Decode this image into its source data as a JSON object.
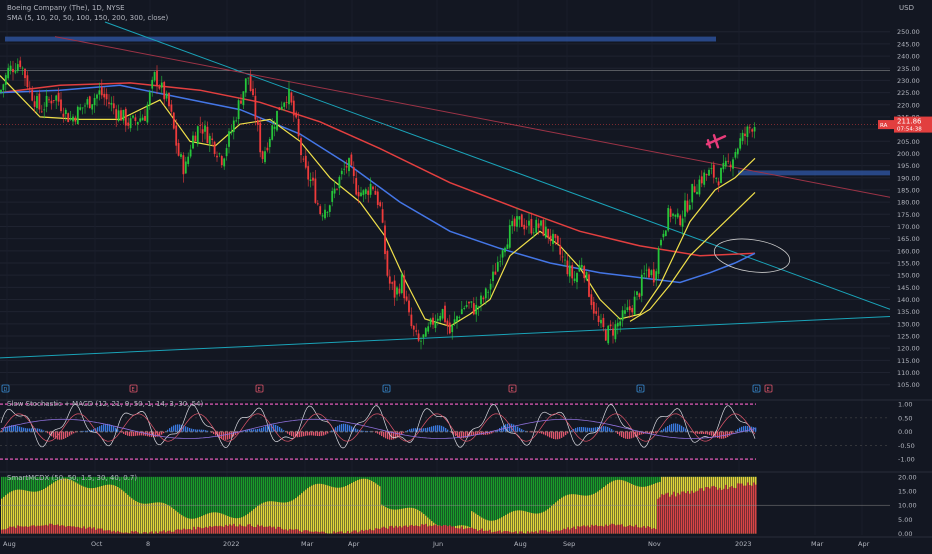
{
  "header": {
    "title": "Boeing Company (The), 1D, NYSE",
    "indicator": "SMA (5, 10, 20, 50, 100, 150, 200, 300, close)",
    "currency": "USD"
  },
  "price_tag": {
    "value": "211.86",
    "time": "07:54:38",
    "badge": "RA"
  },
  "colors": {
    "background": "#131722",
    "up_candle": "#26c63a",
    "down_candle": "#ef3b3b",
    "sma_fast": "#f0e04a",
    "sma_100": "#4476e6",
    "sma_200": "#e23f3f",
    "trendline_teal": "#1aa3b8",
    "trendline_red": "#9c3346",
    "zone": "#3058a8"
  },
  "chart_data": [
    {
      "type": "line",
      "title": "",
      "series_kind": "candlestick",
      "x": [
        "Aug",
        "Oct",
        "8",
        "2022",
        "Mar",
        "Apr",
        "Jun",
        "Aug",
        "Sep",
        "Nov",
        "2023",
        "Mar",
        "Apr"
      ],
      "y_ticks": [
        "250.00",
        "245.00",
        "240.00",
        "235.00",
        "230.00",
        "225.00",
        "220.00",
        "215.00",
        "210.00",
        "205.00",
        "200.00",
        "195.00",
        "190.00",
        "185.00",
        "180.00",
        "175.00",
        "170.00",
        "165.00",
        "160.00",
        "155.00",
        "150.00",
        "145.00",
        "140.00",
        "135.00",
        "130.00",
        "125.00",
        "120.00",
        "115.00",
        "110.00",
        "105.00"
      ],
      "ylim": [
        102,
        254
      ],
      "close_path": [
        [
          0,
          225
        ],
        [
          8,
          234
        ],
        [
          20,
          238
        ],
        [
          30,
          226
        ],
        [
          40,
          218
        ],
        [
          55,
          224
        ],
        [
          70,
          214
        ],
        [
          85,
          220
        ],
        [
          100,
          225
        ],
        [
          115,
          218
        ],
        [
          130,
          212
        ],
        [
          145,
          216
        ],
        [
          155,
          232
        ],
        [
          162,
          226
        ],
        [
          170,
          218
        ],
        [
          178,
          200
        ],
        [
          185,
          193
        ],
        [
          192,
          206
        ],
        [
          200,
          212
        ],
        [
          212,
          205
        ],
        [
          222,
          198
        ],
        [
          232,
          210
        ],
        [
          240,
          222
        ],
        [
          248,
          232
        ],
        [
          256,
          214
        ],
        [
          262,
          198
        ],
        [
          270,
          208
        ],
        [
          280,
          220
        ],
        [
          288,
          225
        ],
        [
          296,
          212
        ],
        [
          304,
          193
        ],
        [
          312,
          188
        ],
        [
          320,
          176
        ],
        [
          330,
          180
        ],
        [
          340,
          190
        ],
        [
          348,
          196
        ],
        [
          356,
          186
        ],
        [
          364,
          183
        ],
        [
          372,
          188
        ],
        [
          380,
          178
        ],
        [
          388,
          148
        ],
        [
          395,
          142
        ],
        [
          402,
          148
        ],
        [
          410,
          130
        ],
        [
          418,
          122
        ],
        [
          426,
          125
        ],
        [
          434,
          132
        ],
        [
          442,
          136
        ],
        [
          450,
          126
        ],
        [
          458,
          134
        ],
        [
          466,
          138
        ],
        [
          476,
          136
        ],
        [
          486,
          142
        ],
        [
          494,
          150
        ],
        [
          502,
          162
        ],
        [
          510,
          168
        ],
        [
          520,
          172
        ],
        [
          530,
          170
        ],
        [
          540,
          170
        ],
        [
          550,
          166
        ],
        [
          558,
          160
        ],
        [
          566,
          154
        ],
        [
          574,
          148
        ],
        [
          582,
          156
        ],
        [
          590,
          142
        ],
        [
          598,
          130
        ],
        [
          606,
          126
        ],
        [
          614,
          128
        ],
        [
          622,
          132
        ],
        [
          630,
          136
        ],
        [
          638,
          142
        ],
        [
          646,
          152
        ],
        [
          654,
          150
        ],
        [
          662,
          168
        ],
        [
          670,
          176
        ],
        [
          678,
          172
        ],
        [
          686,
          178
        ],
        [
          694,
          186
        ],
        [
          702,
          190
        ],
        [
          710,
          192
        ],
        [
          718,
          190
        ],
        [
          726,
          194
        ],
        [
          734,
          200
        ],
        [
          740,
          205
        ],
        [
          746,
          208
        ],
        [
          752,
          211.86
        ]
      ],
      "sma_fast": [
        [
          0,
          232
        ],
        [
          40,
          215
        ],
        [
          80,
          214
        ],
        [
          120,
          214
        ],
        [
          160,
          222
        ],
        [
          190,
          205
        ],
        [
          215,
          203
        ],
        [
          240,
          212
        ],
        [
          270,
          214
        ],
        [
          300,
          205
        ],
        [
          330,
          190
        ],
        [
          360,
          180
        ],
        [
          385,
          166
        ],
        [
          405,
          148
        ],
        [
          425,
          132
        ],
        [
          450,
          129
        ],
        [
          470,
          134
        ],
        [
          490,
          140
        ],
        [
          510,
          158
        ],
        [
          540,
          168
        ],
        [
          560,
          162
        ],
        [
          580,
          153
        ],
        [
          600,
          140
        ],
        [
          620,
          132
        ],
        [
          640,
          134
        ],
        [
          660,
          146
        ],
        [
          690,
          172
        ],
        [
          715,
          185
        ],
        [
          735,
          190
        ],
        [
          755,
          198
        ]
      ],
      "sma_fast_2": [
        [
          630,
          131
        ],
        [
          650,
          136
        ],
        [
          670,
          146
        ],
        [
          690,
          158
        ],
        [
          710,
          166
        ],
        [
          735,
          176
        ],
        [
          755,
          184
        ]
      ],
      "sma_100": [
        [
          0,
          225
        ],
        [
          60,
          226
        ],
        [
          120,
          228
        ],
        [
          180,
          223
        ],
        [
          240,
          218
        ],
        [
          300,
          208
        ],
        [
          350,
          195
        ],
        [
          400,
          180
        ],
        [
          450,
          168
        ],
        [
          500,
          161
        ],
        [
          550,
          155
        ],
        [
          600,
          151
        ],
        [
          640,
          149
        ],
        [
          680,
          147
        ],
        [
          710,
          151
        ],
        [
          735,
          155
        ],
        [
          755,
          159
        ]
      ],
      "sma_200": [
        [
          0,
          225
        ],
        [
          60,
          228
        ],
        [
          130,
          229
        ],
        [
          200,
          226
        ],
        [
          260,
          221
        ],
        [
          320,
          213
        ],
        [
          380,
          202
        ],
        [
          450,
          188
        ],
        [
          520,
          177
        ],
        [
          580,
          168
        ],
        [
          640,
          162
        ],
        [
          700,
          158
        ],
        [
          755,
          159
        ]
      ],
      "trendlines": [
        {
          "color": "teal",
          "points": [
            [
              105,
              254
            ],
            [
              890,
              136
            ]
          ]
        },
        {
          "color": "teal",
          "points": [
            [
              0,
              116
            ],
            [
              890,
              133
            ]
          ]
        },
        {
          "color": "red",
          "points": [
            [
              55,
              248
            ],
            [
              890,
              182
            ]
          ]
        }
      ],
      "zones": [
        {
          "x": [
            5,
            716
          ],
          "y": [
            246,
            248
          ]
        },
        {
          "x": [
            738,
            890
          ],
          "y": [
            191,
            193
          ]
        }
      ],
      "resistance_line": {
        "y": 234
      },
      "last_price_line": {
        "y": 211.86
      },
      "annotations": [
        {
          "type": "ellipse",
          "center": [
            752,
            158
          ],
          "color": "#cccccc"
        },
        {
          "type": "airplane",
          "at": [
            716,
            205
          ],
          "color": "#e83c7a"
        }
      ],
      "event_markers": [
        {
          "x": 5,
          "label": "D"
        },
        {
          "x": 133,
          "label": "E"
        },
        {
          "x": 259,
          "label": "E"
        },
        {
          "x": 386,
          "label": "D"
        },
        {
          "x": 512,
          "label": "E"
        },
        {
          "x": 640,
          "label": "D"
        },
        {
          "x": 756,
          "label": "D"
        },
        {
          "x": 768,
          "label": "E"
        }
      ]
    },
    {
      "type": "line",
      "title": "Slow Stochastic + MACD (12, 21, 9, 50, 1, 14, 3, 30, 54)",
      "y_ticks": [
        "1.00",
        "0.50",
        "0.00",
        "-0.50",
        "-1.00"
      ],
      "ylim": [
        -1.25,
        1.15
      ]
    },
    {
      "type": "bar",
      "title": "SmartMCDX (50, 50, 1.5, 30, 40, 0.7)",
      "y_ticks": [
        "20.00",
        "15.00",
        "10.00",
        "5.00",
        "0.00"
      ],
      "ylim": [
        -0.5,
        21
      ]
    }
  ]
}
